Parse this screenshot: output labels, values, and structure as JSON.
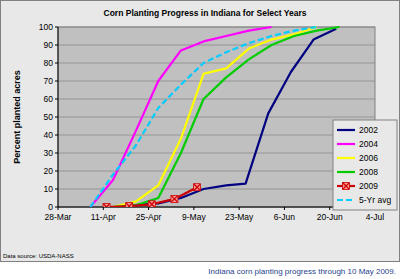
{
  "chart_data": {
    "type": "line",
    "title": "Corn Planting Progress in Indiana for Select Years",
    "y_label": "Percent planted acres",
    "annotations": [
      "Data source: USDA-NASS",
      "Indiana corn planting progress through 10 May 2009."
    ],
    "xlim": [
      87,
      185
    ],
    "xticks": [
      {
        "value": 87,
        "label": "28-Mar"
      },
      {
        "value": 101,
        "label": "11-Apr"
      },
      {
        "value": 115,
        "label": "25-Apr"
      },
      {
        "value": 129,
        "label": "9-May"
      },
      {
        "value": 143,
        "label": "23-May"
      },
      {
        "value": 157,
        "label": "6-Jun"
      },
      {
        "value": 171,
        "label": "20-Jun"
      },
      {
        "value": 185,
        "label": "4-Jul"
      }
    ],
    "ylim": [
      0,
      100
    ],
    "yticks": [
      0,
      10,
      20,
      30,
      40,
      50,
      60,
      70,
      80,
      90,
      100
    ],
    "grid": true,
    "legend": "lower right",
    "series": [
      {
        "name": "2002",
        "color": "#000080",
        "x": [
          104,
          111,
          118,
          125,
          132,
          139,
          145,
          152,
          159,
          166,
          173
        ],
        "values": [
          0,
          1,
          2,
          5,
          10,
          12,
          13,
          52,
          75,
          93,
          99
        ]
      },
      {
        "name": "2004",
        "color": "#ff00ff",
        "x": [
          97,
          104,
          111,
          118,
          125,
          132,
          139,
          146,
          153
        ],
        "values": [
          0,
          15,
          42,
          70,
          87,
          92,
          95,
          98,
          100
        ]
      },
      {
        "name": "2006",
        "color": "#ffff00",
        "x": [
          104,
          111,
          118,
          125,
          132,
          139,
          146,
          153,
          160,
          167
        ],
        "values": [
          0,
          3,
          12,
          38,
          74,
          77,
          88,
          93,
          96,
          100
        ]
      },
      {
        "name": "2008",
        "color": "#00cc00",
        "x": [
          104,
          111,
          118,
          125,
          132,
          139,
          146,
          153,
          160,
          167,
          174
        ],
        "values": [
          0,
          1,
          5,
          30,
          60,
          72,
          82,
          90,
          95,
          98,
          100
        ]
      },
      {
        "name": "2009",
        "color": "#cc0000",
        "marker": "x",
        "x": [
          102,
          109,
          116,
          123,
          130
        ],
        "values": [
          0,
          0.5,
          1.5,
          4.5,
          11
        ]
      },
      {
        "name": "5-Yr avg",
        "color": "#00ccff",
        "line_style": "dashed",
        "x": [
          97,
          104,
          111,
          118,
          125,
          132,
          139,
          146,
          153,
          160,
          167
        ],
        "values": [
          0,
          18,
          34,
          55,
          68,
          80,
          86,
          91,
          95,
          98,
          100
        ]
      }
    ]
  }
}
